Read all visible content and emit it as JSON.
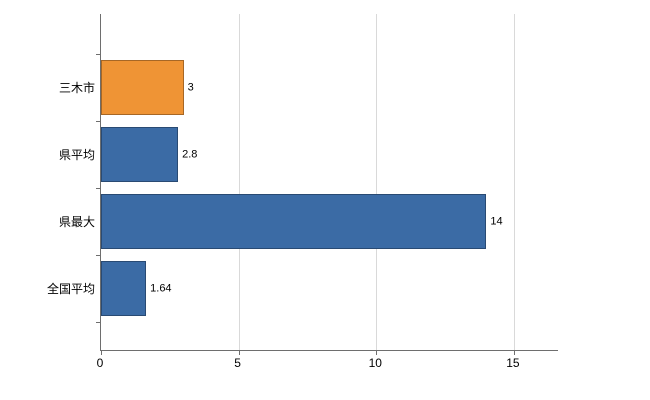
{
  "chart_data": {
    "type": "bar",
    "orientation": "horizontal",
    "title": "",
    "xlabel": "",
    "ylabel": "",
    "categories": [
      "三木市",
      "県平均",
      "県最大",
      "全国平均"
    ],
    "values": [
      3,
      2.8,
      14,
      1.64
    ],
    "value_labels": [
      "3",
      "2.8",
      "14",
      "1.64"
    ],
    "bar_colors": [
      "#EF9435",
      "#3B6BA5",
      "#3B6BA5",
      "#3B6BA5"
    ],
    "xlim": [
      0,
      16.6
    ],
    "x_ticks": [
      0,
      5,
      10,
      15
    ],
    "grid": "vertical",
    "legend": "none",
    "background_color": "#FFFFFF",
    "gridline_color": "#D9D9D9",
    "axis_color": "#6E6E6E"
  }
}
